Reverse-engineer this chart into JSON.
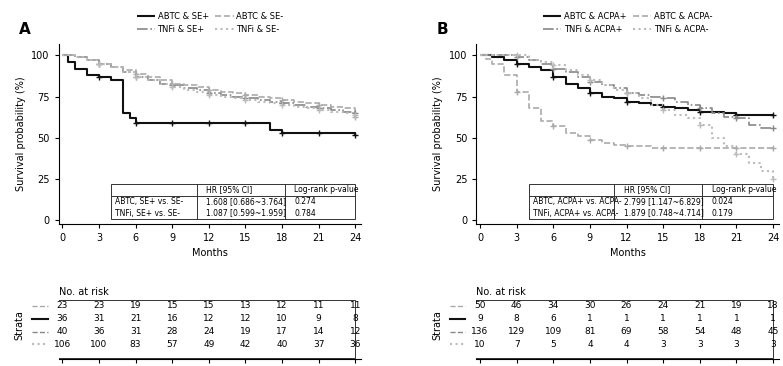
{
  "panel_A": {
    "title": "A",
    "legend_entries": [
      "ABTC & SE+",
      "TNFi & SE+",
      "ABTC & SE-",
      "TNFi & SE-"
    ],
    "table_rows": [
      [
        "ABTC, SE+ vs. SE-",
        "1.608 [0.686~3.764]",
        "0.274"
      ],
      [
        "TNFi, SE+ vs. SE-",
        "1.087 [0.599~1.959]",
        "0.784"
      ]
    ],
    "table_header": [
      "",
      "HR [95% CI]",
      "Log-rank p-value"
    ],
    "at_risk_rows": [
      [
        23,
        23,
        19,
        15,
        15,
        13,
        12,
        11,
        11
      ],
      [
        36,
        31,
        21,
        16,
        12,
        12,
        10,
        9,
        8
      ],
      [
        40,
        36,
        31,
        28,
        24,
        19,
        17,
        14,
        12
      ],
      [
        106,
        100,
        83,
        57,
        49,
        42,
        40,
        37,
        36
      ]
    ],
    "timepoints": [
      0,
      3,
      6,
      9,
      12,
      15,
      18,
      21,
      24
    ],
    "curves": {
      "ABTC_SE+": {
        "times": [
          0,
          0.5,
          1,
          2,
          3,
          4,
          5,
          5.5,
          6,
          9,
          12,
          15,
          17,
          18,
          21,
          24
        ],
        "surv": [
          1.0,
          0.96,
          0.92,
          0.88,
          0.87,
          0.85,
          0.65,
          0.62,
          0.59,
          0.59,
          0.59,
          0.59,
          0.55,
          0.53,
          0.53,
          0.52
        ]
      },
      "TNFi_SE+": {
        "times": [
          0,
          1,
          2,
          3,
          4,
          5,
          6,
          7,
          8,
          9,
          10,
          11,
          12,
          13,
          14,
          15,
          16,
          17,
          18,
          19,
          20,
          21,
          22,
          23,
          24
        ],
        "surv": [
          1.0,
          0.99,
          0.97,
          0.95,
          0.93,
          0.9,
          0.87,
          0.85,
          0.83,
          0.82,
          0.8,
          0.79,
          0.77,
          0.76,
          0.75,
          0.74,
          0.73,
          0.72,
          0.71,
          0.7,
          0.69,
          0.68,
          0.67,
          0.66,
          0.65
        ]
      },
      "ABTC_SE-": {
        "times": [
          0,
          1,
          2,
          3,
          4,
          5,
          6,
          7,
          8,
          9,
          10,
          11,
          12,
          13,
          14,
          15,
          16,
          17,
          18,
          19,
          20,
          21,
          22,
          23,
          24
        ],
        "surv": [
          1.0,
          0.99,
          0.97,
          0.95,
          0.93,
          0.91,
          0.89,
          0.87,
          0.85,
          0.83,
          0.82,
          0.81,
          0.79,
          0.78,
          0.77,
          0.76,
          0.75,
          0.74,
          0.73,
          0.72,
          0.71,
          0.7,
          0.69,
          0.68,
          0.63
        ]
      },
      "TNFi_SE-": {
        "times": [
          0,
          1,
          2,
          3,
          4,
          5,
          6,
          7,
          8,
          9,
          10,
          11,
          12,
          13,
          14,
          15,
          16,
          17,
          18,
          19,
          20,
          21,
          22,
          23,
          24
        ],
        "surv": [
          1.0,
          0.99,
          0.97,
          0.95,
          0.93,
          0.9,
          0.87,
          0.85,
          0.83,
          0.81,
          0.79,
          0.78,
          0.76,
          0.75,
          0.74,
          0.73,
          0.72,
          0.71,
          0.7,
          0.69,
          0.68,
          0.67,
          0.66,
          0.65,
          0.64
        ]
      }
    },
    "styles": [
      {
        "color": "#111111",
        "linestyle": "-",
        "linewidth": 1.5,
        "dashes": null
      },
      {
        "color": "#888888",
        "linestyle": "-.",
        "linewidth": 1.2,
        "dashes": null
      },
      {
        "color": "#aaaaaa",
        "linestyle": "--",
        "linewidth": 1.2,
        "dashes": null
      },
      {
        "color": "#bbbbbb",
        "linestyle": ":",
        "linewidth": 1.5,
        "dashes": null
      }
    ]
  },
  "panel_B": {
    "title": "B",
    "legend_entries": [
      "ABTC & ACPA+",
      "TNFi & ACPA+",
      "ABTC & ACPA-",
      "TNFi & ACPA-"
    ],
    "table_rows": [
      [
        "ABTC, ACPA+ vs. ACPA-",
        "2.799 [1.147~6.829]",
        "0.024"
      ],
      [
        "TNFi, ACPA+ vs. ACPA-",
        "1.879 [0.748~4.714]",
        "0.179"
      ]
    ],
    "table_header": [
      "",
      "HR [95% CI]",
      "Log-rank p-value"
    ],
    "at_risk_rows": [
      [
        50,
        46,
        34,
        30,
        26,
        24,
        21,
        19,
        18
      ],
      [
        9,
        8,
        6,
        1,
        1,
        1,
        1,
        1,
        1
      ],
      [
        136,
        129,
        109,
        81,
        69,
        58,
        54,
        48,
        45
      ],
      [
        10,
        7,
        5,
        4,
        4,
        3,
        3,
        3,
        3
      ]
    ],
    "timepoints": [
      0,
      3,
      6,
      9,
      12,
      15,
      18,
      21,
      24
    ],
    "curves": {
      "ABTC_ACPA+": {
        "times": [
          0,
          1,
          2,
          3,
          4,
          5,
          6,
          7,
          8,
          9,
          10,
          11,
          12,
          13,
          14,
          15,
          16,
          17,
          18,
          20,
          21,
          22,
          23,
          24
        ],
        "surv": [
          1.0,
          0.99,
          0.97,
          0.95,
          0.93,
          0.91,
          0.87,
          0.83,
          0.8,
          0.77,
          0.75,
          0.74,
          0.72,
          0.71,
          0.7,
          0.69,
          0.68,
          0.67,
          0.66,
          0.65,
          0.64,
          0.64,
          0.64,
          0.64
        ]
      },
      "TNFi_ACPA+": {
        "times": [
          0,
          0.5,
          1,
          2,
          3,
          4,
          5,
          6,
          7,
          8,
          9,
          10,
          11,
          12,
          13,
          14,
          15,
          16,
          17,
          18,
          19,
          20,
          21,
          22,
          23,
          24
        ],
        "surv": [
          1.0,
          1.0,
          1.0,
          1.0,
          0.99,
          0.97,
          0.95,
          0.92,
          0.9,
          0.87,
          0.84,
          0.82,
          0.8,
          0.77,
          0.76,
          0.75,
          0.74,
          0.72,
          0.7,
          0.68,
          0.65,
          0.63,
          0.62,
          0.58,
          0.56,
          0.56
        ]
      },
      "ABTC_ACPA-": {
        "times": [
          0,
          0.5,
          1,
          2,
          3,
          4,
          5,
          6,
          7,
          8,
          9,
          10,
          11,
          12,
          13,
          14,
          15,
          16,
          17,
          18,
          21,
          24
        ],
        "surv": [
          1.0,
          0.98,
          0.95,
          0.88,
          0.78,
          0.68,
          0.6,
          0.57,
          0.53,
          0.51,
          0.49,
          0.47,
          0.46,
          0.45,
          0.45,
          0.44,
          0.44,
          0.44,
          0.44,
          0.44,
          0.44,
          0.44
        ]
      },
      "TNFi_ACPA-": {
        "times": [
          0,
          1,
          2,
          3,
          4,
          5,
          6,
          7,
          8,
          9,
          10,
          11,
          12,
          13,
          14,
          15,
          16,
          17,
          18,
          19,
          20,
          21,
          22,
          23,
          24
        ],
        "surv": [
          1.0,
          1.0,
          1.0,
          1.0,
          0.97,
          0.96,
          0.94,
          0.91,
          0.88,
          0.85,
          0.82,
          0.79,
          0.77,
          0.74,
          0.7,
          0.67,
          0.64,
          0.62,
          0.58,
          0.5,
          0.45,
          0.4,
          0.35,
          0.3,
          0.25
        ]
      }
    },
    "styles": [
      {
        "color": "#111111",
        "linestyle": "-",
        "linewidth": 1.5,
        "dashes": null
      },
      {
        "color": "#888888",
        "linestyle": "-.",
        "linewidth": 1.2,
        "dashes": null
      },
      {
        "color": "#aaaaaa",
        "linestyle": "--",
        "linewidth": 1.2,
        "dashes": null
      },
      {
        "color": "#bbbbbb",
        "linestyle": ":",
        "linewidth": 1.5,
        "dashes": null
      }
    ]
  },
  "ylabel": "Survival probability (%)",
  "xlabel": "Months",
  "yticks": [
    0,
    25,
    50,
    75,
    100
  ],
  "xticks": [
    0,
    3,
    6,
    9,
    12,
    15,
    18,
    21,
    24
  ],
  "ylim": [
    -2,
    107
  ],
  "xlim": [
    -0.3,
    24.5
  ],
  "fontsize": 7,
  "risk_fontsize": 6.5
}
